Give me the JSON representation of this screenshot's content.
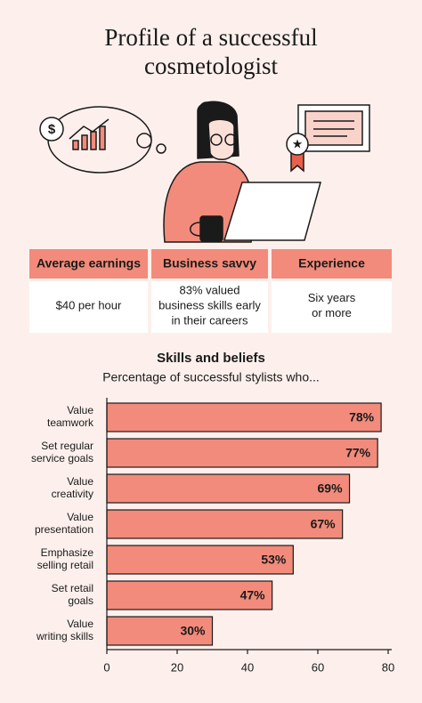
{
  "title": [
    "Profile of a successful",
    "cosmetologist"
  ],
  "table": {
    "headers": [
      "Average earnings",
      "Business savvy",
      "Experience"
    ],
    "rows": [
      [
        [
          "$40 per hour"
        ],
        [
          "83% valued",
          "business skills early",
          "in their careers"
        ],
        [
          "Six years",
          "or more"
        ]
      ]
    ]
  },
  "chart_data": {
    "type": "bar",
    "orientation": "horizontal",
    "title": "Skills and beliefs",
    "subtitle": "Percentage of successful stylists who...",
    "categories": [
      [
        "Value",
        "teamwork"
      ],
      [
        "Set regular",
        "service goals"
      ],
      [
        "Value",
        "creativity"
      ],
      [
        "Value",
        "presentation"
      ],
      [
        "Emphasize",
        "selling retail"
      ],
      [
        "Set retail",
        "goals"
      ],
      [
        "Value",
        "writing skills"
      ]
    ],
    "values": [
      78,
      77,
      69,
      67,
      53,
      47,
      30
    ],
    "value_labels": [
      "78%",
      "77%",
      "69%",
      "67%",
      "53%",
      "47%",
      "30%"
    ],
    "color": "#f28b7b",
    "xlim": [
      0,
      80
    ],
    "xticks": [
      0,
      20,
      40,
      60,
      80
    ],
    "grid": false
  }
}
